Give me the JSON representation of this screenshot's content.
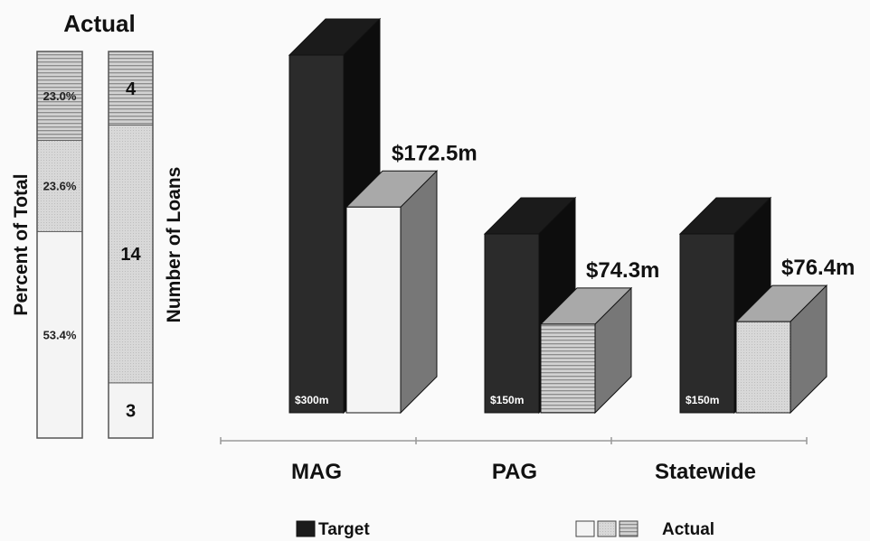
{
  "chart_data": [
    {
      "type": "bar",
      "subtype": "stacked-100",
      "title": "Actual",
      "ylabel": "Percent of Total",
      "segments": [
        {
          "label": "53.4%",
          "value": 53.4,
          "fill": "plain"
        },
        {
          "label": "23.6%",
          "value": 23.6,
          "fill": "dotted"
        },
        {
          "label": "23.0%",
          "value": 23.0,
          "fill": "striped"
        }
      ]
    },
    {
      "type": "bar",
      "subtype": "stacked",
      "ylabel": "Number of Loans",
      "segments": [
        {
          "label": "3",
          "value": 3,
          "fill": "plain"
        },
        {
          "label": "14",
          "value": 14,
          "fill": "dotted"
        },
        {
          "label": "4",
          "value": 4,
          "fill": "striped"
        }
      ]
    },
    {
      "type": "bar",
      "style": "3d-grouped",
      "categories": [
        "MAG",
        "PAG",
        "Statewide"
      ],
      "series": [
        {
          "name": "Target",
          "values": [
            300,
            150,
            150
          ],
          "labels": [
            "$300m",
            "$150m",
            "$150m"
          ],
          "color": "#2b2b2b"
        },
        {
          "name": "Actual",
          "values": [
            172.5,
            74.3,
            76.4
          ],
          "labels": [
            "$172.5m",
            "$74.3m",
            "$76.4m"
          ],
          "fills": [
            "plain",
            "striped",
            "dotted"
          ]
        }
      ],
      "units": "millions of dollars",
      "legend": {
        "position": "bottom",
        "items": [
          "Target",
          "Actual"
        ]
      }
    }
  ]
}
